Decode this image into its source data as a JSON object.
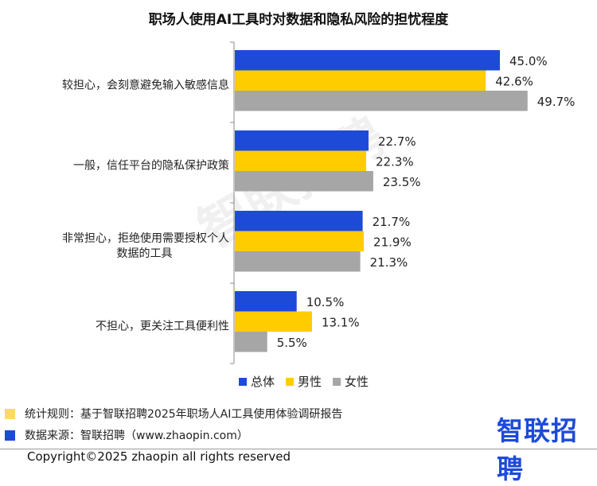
{
  "chart_data": {
    "type": "bar",
    "orientation": "horizontal",
    "title": "职场人使用AI工具时对数据和隐私风险的担忧程度",
    "categories": [
      "较担心，会刻意避免输入敏感信息",
      "一般，信任平台的隐私保护政策",
      "非常担心，拒绝使用需要授权个人数据的工具",
      "不担心，更关注工具便利性"
    ],
    "category_lines": [
      [
        "较担心，会刻意避免输入敏感信息"
      ],
      [
        "一般，信任平台的隐私保护政策"
      ],
      [
        "非常担心，拒绝使用需要授权个人",
        "数据的工具"
      ],
      [
        "不担心，更关注工具便利性"
      ]
    ],
    "series": [
      {
        "name": "总体",
        "color": "#1d4bd8",
        "values": [
          45.0,
          22.7,
          21.7,
          10.5
        ]
      },
      {
        "name": "男性",
        "color": "#ffcc00",
        "values": [
          42.6,
          22.3,
          21.9,
          13.1
        ]
      },
      {
        "name": "女性",
        "color": "#a6a6a6",
        "values": [
          49.7,
          23.5,
          21.3,
          5.5
        ]
      }
    ],
    "value_suffix": "%",
    "xlim": [
      0,
      55
    ],
    "grid": false,
    "legend_position": "bottom"
  },
  "legend": [
    {
      "label": "总体",
      "color": "#1d4bd8"
    },
    {
      "label": "男性",
      "color": "#ffcc00"
    },
    {
      "label": "女性",
      "color": "#a6a6a6"
    }
  ],
  "footer": {
    "stats_rule": "统计规则：基于智联招聘2025年职场人AI工具使用体验调研报告",
    "stats_rule_color": "#ffd966",
    "data_source": "数据来源：智联招聘（www.zhaopin.com）",
    "data_source_color": "#1d4bd8",
    "brand": "智联招聘",
    "watermark": "智联招聘",
    "copyright": "Copyright©2025 zhaopin all rights reserved"
  }
}
